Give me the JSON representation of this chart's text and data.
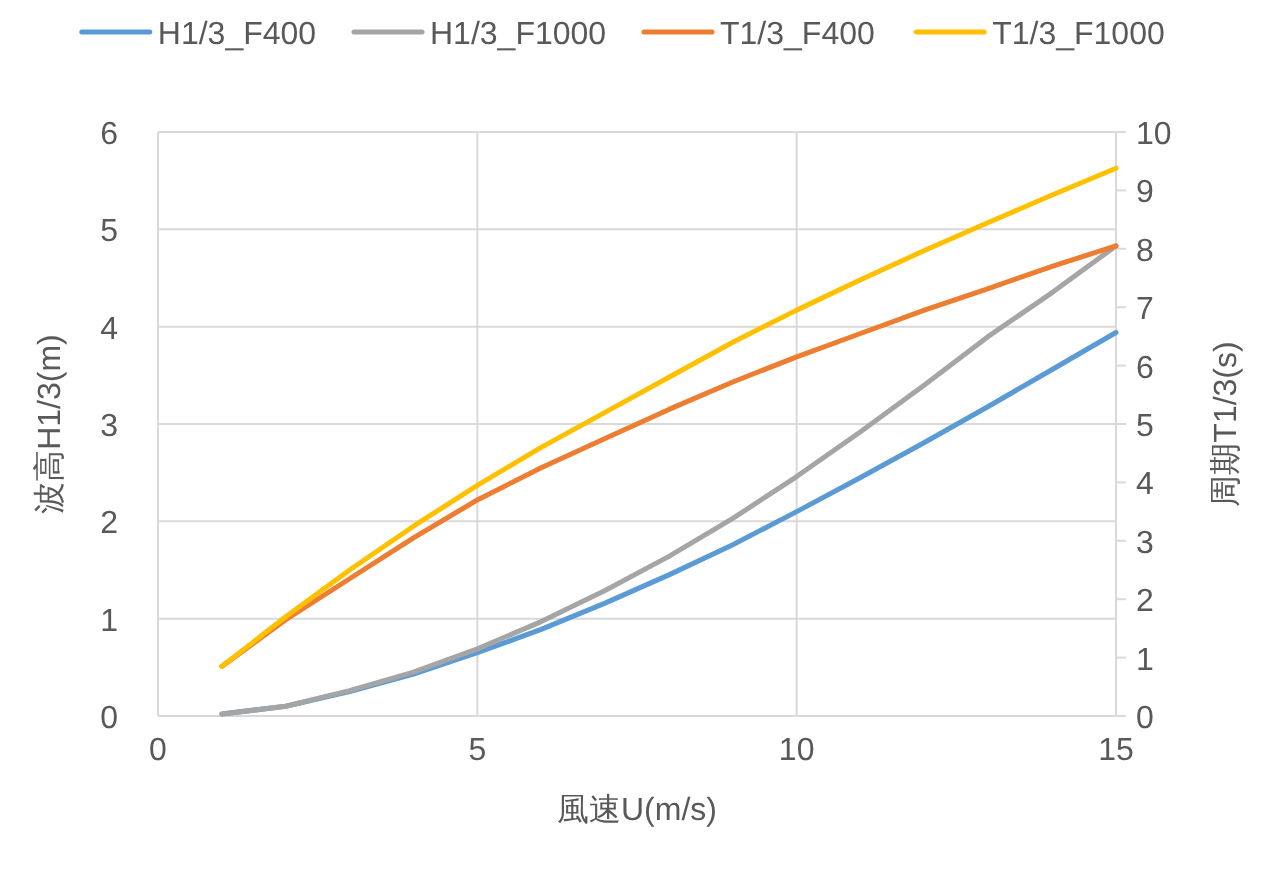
{
  "chart_data": {
    "type": "line",
    "xlabel": "風速U(m/s)",
    "ylabel": "波高H1/3(m)",
    "y2label": "周期T1/3(s)",
    "xlim": [
      0,
      15
    ],
    "xticks": [
      0,
      5,
      10,
      15
    ],
    "ylim": [
      0,
      6
    ],
    "yticks": [
      0,
      1,
      2,
      3,
      4,
      5,
      6
    ],
    "y2lim": [
      0,
      10
    ],
    "y2ticks": [
      0,
      1,
      2,
      3,
      4,
      5,
      6,
      7,
      8,
      9,
      10
    ],
    "grid": true,
    "legend": "top",
    "x": [
      1,
      2,
      3,
      4,
      5,
      6,
      7,
      8,
      9,
      10,
      11,
      12,
      13,
      14,
      15
    ],
    "series": [
      {
        "name": "H1/3_F400",
        "color": "#5b9bd5",
        "values": [
          0.02,
          0.1,
          0.25,
          0.43,
          0.65,
          0.89,
          1.16,
          1.45,
          1.76,
          2.1,
          2.45,
          2.81,
          3.18,
          3.56,
          3.94
        ]
      },
      {
        "name": "H1/3_F1000",
        "color": "#a5a5a5",
        "values": [
          0.02,
          0.1,
          0.26,
          0.45,
          0.69,
          0.97,
          1.29,
          1.64,
          2.03,
          2.46,
          2.92,
          3.4,
          3.9,
          4.35,
          4.83
        ]
      },
      {
        "name": "T1/3_F400",
        "color": "#ed7d31",
        "axis": "y2",
        "values": [
          0.85,
          1.65,
          2.35,
          3.05,
          3.7,
          4.25,
          4.75,
          5.25,
          5.72,
          6.15,
          6.55,
          6.95,
          7.32,
          7.7,
          8.05
        ]
      },
      {
        "name": "T1/3_F1000",
        "color": "#ffc000",
        "axis": "y2",
        "values": [
          0.85,
          1.7,
          2.5,
          3.25,
          3.95,
          4.6,
          5.2,
          5.8,
          6.4,
          6.95,
          7.47,
          7.97,
          8.45,
          8.92,
          9.38
        ]
      }
    ]
  }
}
